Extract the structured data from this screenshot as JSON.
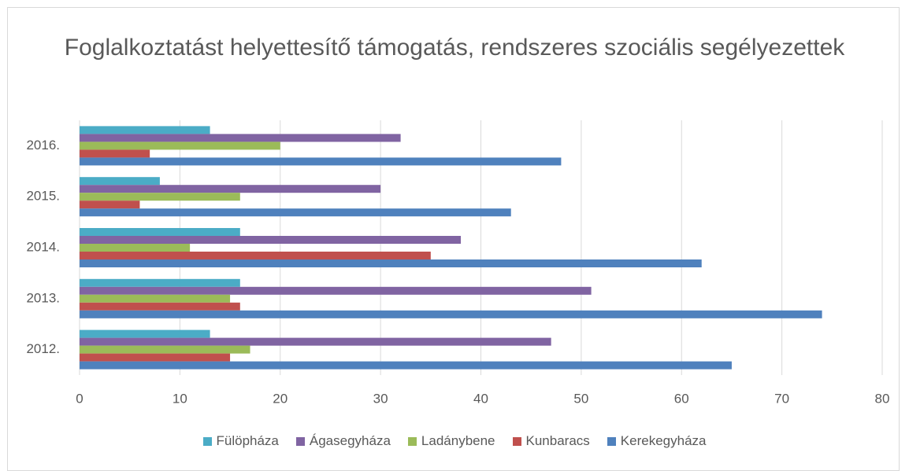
{
  "chart_data": {
    "type": "hbar",
    "title": "Foglalkoztatást helyettesítő támogatás, rendszeres szociális segélyezettek",
    "categories": [
      "2012.",
      "2013.",
      "2014.",
      "2015.",
      "2016."
    ],
    "series": [
      {
        "name": "Fülöpháza",
        "color": "#4bacc6",
        "values": [
          13,
          16,
          16,
          8,
          13
        ]
      },
      {
        "name": "Ágasegyháza",
        "color": "#8064a2",
        "values": [
          47,
          51,
          38,
          30,
          32
        ]
      },
      {
        "name": "Ladánybene",
        "color": "#9bbb59",
        "values": [
          17,
          15,
          11,
          16,
          20
        ]
      },
      {
        "name": "Kunbaracs",
        "color": "#c0504d",
        "values": [
          15,
          16,
          35,
          6,
          7
        ]
      },
      {
        "name": "Kerekegyháza",
        "color": "#4f81bd",
        "values": [
          65,
          74,
          62,
          43,
          48
        ]
      }
    ],
    "xlim": [
      0,
      80
    ],
    "xticks": [
      0,
      10,
      20,
      30,
      40,
      50,
      60,
      70,
      80
    ],
    "grid": true
  }
}
